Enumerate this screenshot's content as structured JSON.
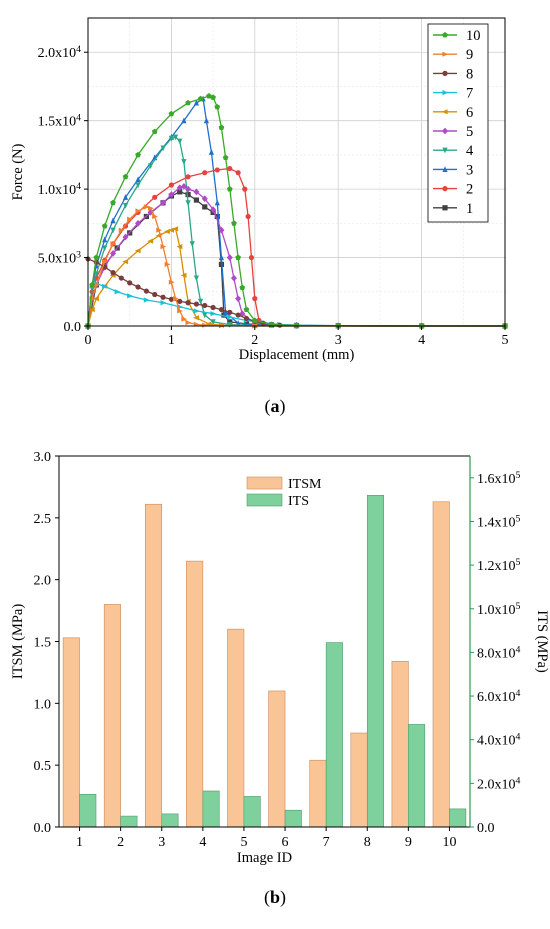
{
  "panel_a_caption": {
    "open": "(",
    "letter": "a",
    "close": ")"
  },
  "panel_b_caption": {
    "open": "(",
    "letter": "b",
    "close": ")"
  },
  "chart_data": [
    {
      "type": "line",
      "xlabel": "Displacement (mm)",
      "ylabel": "Force (N)",
      "xlim": [
        0,
        5
      ],
      "ylim": [
        0,
        22500
      ],
      "x_ticks": [
        0,
        1,
        2,
        3,
        4,
        5
      ],
      "y_ticks": [
        {
          "value": 0,
          "label": "0.0"
        },
        {
          "value": 5000,
          "label": "5.0x10",
          "exp": "3"
        },
        {
          "value": 10000,
          "label": "1.0x10",
          "exp": "4"
        },
        {
          "value": 15000,
          "label": "1.5x10",
          "exp": "4"
        },
        {
          "value": 20000,
          "label": "2.0x10",
          "exp": "4"
        }
      ],
      "grid": true,
      "legend_position": "top-right",
      "legend_order": [
        "10",
        "9",
        "8",
        "7",
        "6",
        "5",
        "4",
        "3",
        "2",
        "1"
      ],
      "series": [
        {
          "name": "1",
          "color": "#404040",
          "marker": "square",
          "x": [
            0,
            0.1,
            0.2,
            0.35,
            0.5,
            0.7,
            0.9,
            1.0,
            1.1,
            1.2,
            1.3,
            1.4,
            1.5,
            1.55,
            1.6,
            1.63,
            1.7,
            1.9,
            2.2,
            2.5,
            3,
            4,
            5
          ],
          "y": [
            0,
            3000,
            4400,
            5700,
            6800,
            8000,
            9000,
            9500,
            9800,
            9600,
            9200,
            8700,
            8300,
            8000,
            4500,
            800,
            300,
            150,
            80,
            40,
            20,
            10,
            0
          ]
        },
        {
          "name": "2",
          "color": "#e8413e",
          "marker": "circle",
          "x": [
            0,
            0.05,
            0.1,
            0.2,
            0.3,
            0.45,
            0.6,
            0.8,
            1.0,
            1.2,
            1.4,
            1.55,
            1.7,
            1.8,
            1.88,
            1.92,
            1.96,
            2.0,
            2.05,
            2.2,
            2.5,
            3,
            4,
            5
          ],
          "y": [
            0,
            2500,
            3500,
            4800,
            6000,
            7300,
            8300,
            9400,
            10300,
            10900,
            11200,
            11400,
            11500,
            11200,
            10000,
            8000,
            5000,
            2000,
            400,
            100,
            40,
            10,
            0,
            0
          ]
        },
        {
          "name": "3",
          "color": "#1f6fd0",
          "marker": "triangle-up",
          "x": [
            0,
            0.05,
            0.1,
            0.2,
            0.3,
            0.45,
            0.6,
            0.8,
            1.0,
            1.15,
            1.3,
            1.38,
            1.42,
            1.48,
            1.55,
            1.6,
            1.65,
            1.8,
            2.0,
            2.5,
            3,
            4,
            5
          ],
          "y": [
            0,
            3000,
            4400,
            6300,
            7700,
            9400,
            10700,
            12300,
            13800,
            15000,
            16300,
            16600,
            15000,
            12700,
            9000,
            5000,
            1000,
            200,
            80,
            30,
            10,
            0,
            0
          ]
        },
        {
          "name": "4",
          "color": "#27a987",
          "marker": "triangle-down",
          "x": [
            0,
            0.05,
            0.1,
            0.2,
            0.3,
            0.45,
            0.6,
            0.75,
            0.9,
            1.0,
            1.05,
            1.1,
            1.15,
            1.2,
            1.25,
            1.3,
            1.35,
            1.4,
            1.5,
            1.7,
            2.0,
            2.5,
            3,
            4,
            5
          ],
          "y": [
            0,
            2800,
            3800,
            5700,
            7000,
            8800,
            10300,
            11700,
            13000,
            13700,
            13800,
            13500,
            12000,
            9000,
            6000,
            3500,
            1800,
            800,
            300,
            100,
            40,
            10,
            0,
            0,
            0
          ]
        },
        {
          "name": "5",
          "color": "#b04bc8",
          "marker": "diamond",
          "x": [
            0,
            0.05,
            0.1,
            0.2,
            0.3,
            0.45,
            0.6,
            0.75,
            0.9,
            1.0,
            1.1,
            1.15,
            1.2,
            1.3,
            1.4,
            1.5,
            1.6,
            1.7,
            1.75,
            1.8,
            1.85,
            2.0,
            2.5,
            3,
            4,
            5
          ],
          "y": [
            0,
            2000,
            3000,
            4300,
            5300,
            6500,
            7500,
            8300,
            9000,
            9600,
            10100,
            10200,
            10000,
            9800,
            9300,
            8500,
            7000,
            5000,
            3500,
            2000,
            900,
            200,
            50,
            10,
            0,
            0
          ]
        },
        {
          "name": "6",
          "color": "#d69000",
          "marker": "triangle-left",
          "x": [
            0,
            0.05,
            0.1,
            0.2,
            0.3,
            0.45,
            0.6,
            0.75,
            0.85,
            0.95,
            1.0,
            1.05,
            1.1,
            1.15,
            1.2,
            1.3,
            1.45,
            1.6,
            2.0,
            2.5,
            3,
            4,
            5
          ],
          "y": [
            0,
            1200,
            2000,
            2900,
            3700,
            4700,
            5500,
            6200,
            6600,
            6900,
            7000,
            7100,
            5800,
            3700,
            1800,
            600,
            150,
            50,
            10,
            0,
            0,
            0,
            0
          ]
        },
        {
          "name": "7",
          "color": "#19c1d6",
          "marker": "triangle-right",
          "x": [
            0,
            0.05,
            0.1,
            0.2,
            0.35,
            0.5,
            0.7,
            0.9,
            1.1,
            1.3,
            1.5,
            1.7,
            1.9,
            2.1,
            2.3,
            2.5,
            3,
            4,
            5
          ],
          "y": [
            0,
            2900,
            3100,
            2900,
            2500,
            2200,
            1900,
            1700,
            1400,
            1100,
            900,
            650,
            400,
            250,
            120,
            60,
            20,
            0,
            0
          ]
        },
        {
          "name": "8",
          "color": "#7a3d3d",
          "marker": "circle",
          "x": [
            0,
            0.1,
            0.2,
            0.3,
            0.4,
            0.5,
            0.6,
            0.7,
            0.8,
            0.9,
            1.0,
            1.1,
            1.2,
            1.3,
            1.4,
            1.5,
            1.6,
            1.7,
            1.8,
            1.9,
            2.0,
            2.1,
            2.2,
            2.3,
            2.5,
            3,
            4,
            5
          ],
          "y": [
            4900,
            4650,
            4300,
            3900,
            3500,
            3150,
            2850,
            2550,
            2300,
            2100,
            1950,
            1800,
            1700,
            1600,
            1500,
            1350,
            1200,
            1000,
            800,
            550,
            350,
            200,
            120,
            60,
            30,
            10,
            0,
            0
          ]
        },
        {
          "name": "9",
          "color": "#f07f2e",
          "marker": "triangle-right",
          "x": [
            0,
            0.05,
            0.1,
            0.2,
            0.3,
            0.4,
            0.5,
            0.6,
            0.7,
            0.75,
            0.8,
            0.85,
            0.9,
            0.95,
            1.0,
            1.05,
            1.1,
            1.15,
            1.2,
            1.3,
            1.4,
            1.6,
            2.0,
            2.5,
            3,
            4,
            5
          ],
          "y": [
            0,
            2000,
            3000,
            4700,
            6000,
            7000,
            7800,
            8400,
            8700,
            8600,
            8000,
            7000,
            5800,
            4500,
            3200,
            2000,
            1100,
            500,
            250,
            120,
            60,
            20,
            0,
            0,
            0,
            0,
            0
          ]
        },
        {
          "name": "10",
          "color": "#3aa82a",
          "marker": "pentagon",
          "x": [
            0,
            0.05,
            0.1,
            0.2,
            0.3,
            0.45,
            0.6,
            0.8,
            1.0,
            1.2,
            1.35,
            1.45,
            1.5,
            1.55,
            1.6,
            1.65,
            1.7,
            1.75,
            1.8,
            1.85,
            1.9,
            2.0,
            2.2,
            2.5,
            3,
            4,
            5
          ],
          "y": [
            0,
            3000,
            5000,
            7300,
            9000,
            10900,
            12500,
            14200,
            15500,
            16300,
            16600,
            16800,
            16700,
            16000,
            14500,
            12300,
            10000,
            7500,
            5000,
            2800,
            1200,
            400,
            100,
            40,
            10,
            0,
            0
          ]
        }
      ]
    },
    {
      "type": "bar",
      "xlabel": "Image ID",
      "categories": [
        "1",
        "2",
        "3",
        "4",
        "5",
        "6",
        "7",
        "8",
        "9",
        "10"
      ],
      "left_axis": {
        "label": "ITSM (MPa)",
        "ylim": [
          0,
          3.0
        ],
        "ticks": [
          "0.0",
          "0.5",
          "1.0",
          "1.5",
          "2.0",
          "2.5",
          "3.0"
        ]
      },
      "right_axis": {
        "label": "ITS (MPa)",
        "ylim": [
          0,
          170000
        ],
        "ticks": [
          {
            "value": 0,
            "label": "0.0"
          },
          {
            "value": 20000,
            "label": "2.0x10",
            "exp": "4"
          },
          {
            "value": 40000,
            "label": "4.0x10",
            "exp": "4"
          },
          {
            "value": 60000,
            "label": "6.0x10",
            "exp": "4"
          },
          {
            "value": 80000,
            "label": "8.0x10",
            "exp": "4"
          },
          {
            "value": 100000,
            "label": "1.0x10",
            "exp": "5"
          },
          {
            "value": 120000,
            "label": "1.2x10",
            "exp": "5"
          },
          {
            "value": 140000,
            "label": "1.4x10",
            "exp": "5"
          },
          {
            "value": 160000,
            "label": "1.6x10",
            "exp": "5"
          }
        ]
      },
      "legend_position": "top-center",
      "series": [
        {
          "name": "ITSM",
          "axis": "left",
          "color": "#f9c597",
          "values": [
            1.53,
            1.8,
            2.61,
            2.15,
            1.6,
            1.1,
            0.54,
            0.76,
            1.34,
            2.63
          ]
        },
        {
          "name": "ITS",
          "axis": "right",
          "color": "#7ed09c",
          "values": [
            15000,
            5000,
            6000,
            16500,
            14000,
            7700,
            84500,
            152000,
            47000,
            8300
          ]
        }
      ]
    }
  ]
}
